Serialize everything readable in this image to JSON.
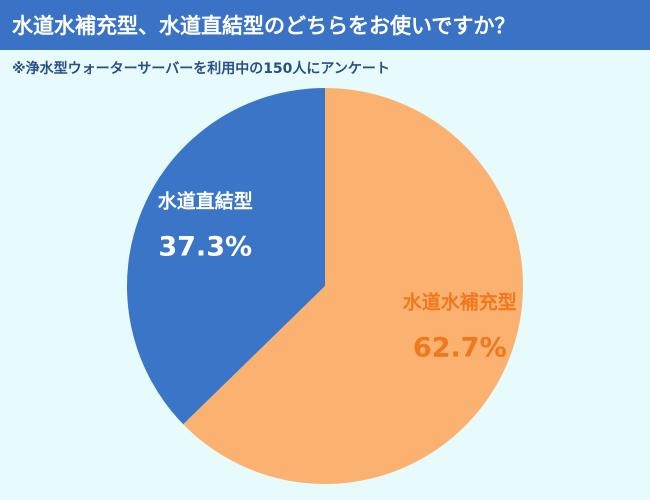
{
  "header": {
    "title": "水道水補充型、水道直結型のどちらをお使いですか？",
    "note": "※浄水型ウォーターサーバーを利用中の150人にアンケート"
  },
  "chart_data": {
    "type": "pie",
    "title": "水道水補充型、水道直結型のどちらをお使いですか？",
    "subtitle": "※浄水型ウォーターサーバーを利用中の150人にアンケート",
    "start_angle_deg": 0,
    "direction": "clockwise",
    "slices": [
      {
        "label": "水道水補充型",
        "value": 62.7,
        "value_label": "62.7%",
        "color": "#fbb170",
        "text_color": "#f0781d"
      },
      {
        "label": "水道直結型",
        "value": 37.3,
        "value_label": "37.3%",
        "color": "#3b75c7",
        "text_color": "#ffffff"
      }
    ]
  },
  "colors": {
    "background": "#e7fbfd",
    "header": "#3a72c6"
  }
}
